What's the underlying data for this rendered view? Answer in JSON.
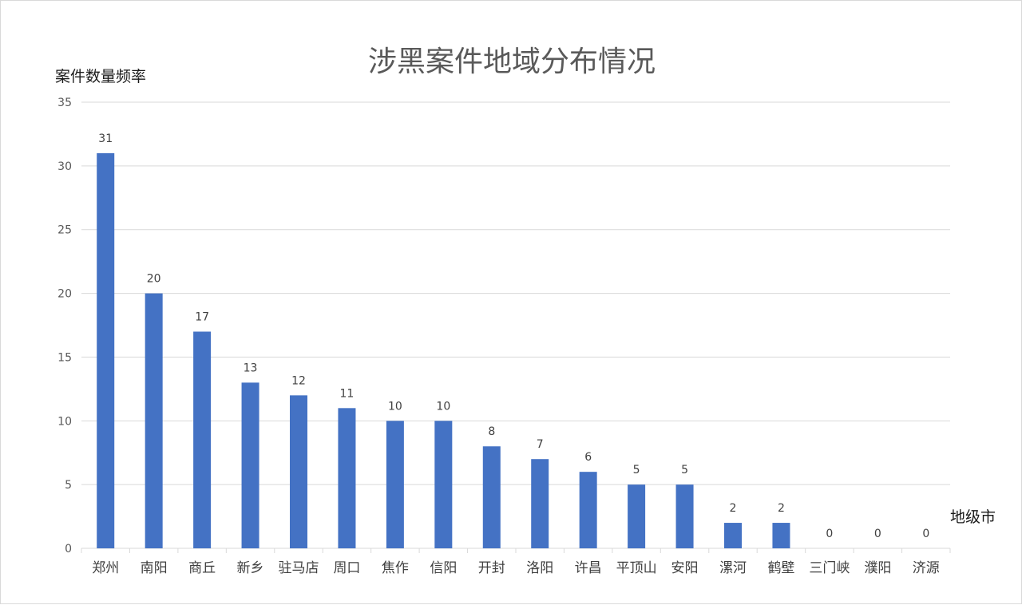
{
  "chart_data": {
    "type": "bar",
    "title": "涉黑案件地域分布情况",
    "xlabel": "地级市",
    "ylabel": "案件数量频率",
    "categories": [
      "郑州",
      "南阳",
      "商丘",
      "新乡",
      "驻马店",
      "周口",
      "焦作",
      "信阳",
      "开封",
      "洛阳",
      "许昌",
      "平顶山",
      "安阳",
      "漯河",
      "鹤壁",
      "三门峡",
      "濮阳",
      "济源"
    ],
    "values": [
      31,
      20,
      17,
      13,
      12,
      11,
      10,
      10,
      8,
      7,
      6,
      5,
      5,
      2,
      2,
      0,
      0,
      0
    ],
    "ylim": [
      0,
      35
    ],
    "yticks": [
      0,
      5,
      10,
      15,
      20,
      25,
      30,
      35
    ],
    "grid": true,
    "legend": "none",
    "bar_color": "#4472C4",
    "grid_color": "#d9d9d9",
    "show_data_labels": true
  }
}
